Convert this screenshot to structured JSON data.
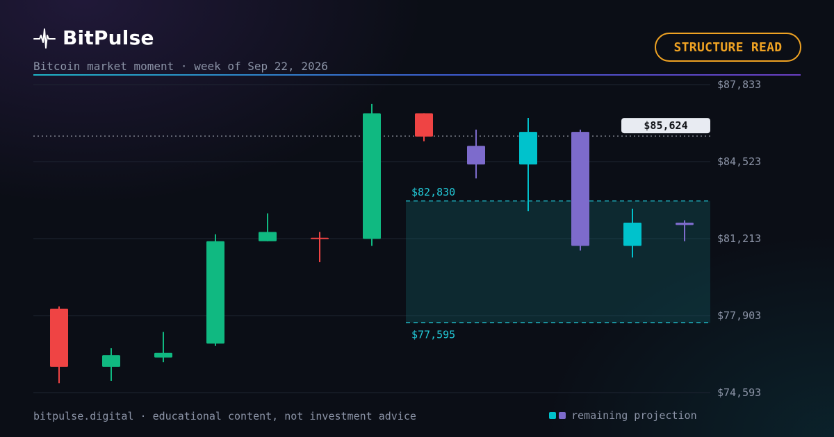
{
  "brand": {
    "name": "BitPulse",
    "icon": "pulse-icon"
  },
  "subtitle": "Bitcoin market moment · week of Sep 22, 2026",
  "badge": "STRUCTURE READ",
  "footer": "bitpulse.digital · educational content, not investment advice",
  "legend": {
    "label": "remaining projection",
    "colors": [
      "#00c2cc",
      "#7d6bcc"
    ]
  },
  "colors": {
    "up": "#10b981",
    "down": "#ef4444",
    "projection_up": "#00c2cc",
    "projection_down": "#7d6bcc",
    "zone_line": "#22c8d6",
    "accent": "#f0a323"
  },
  "chart_data": {
    "type": "candlestick",
    "y_ticks": [
      "$87,833",
      "$84,523",
      "$81,213",
      "$77,903",
      "$74,593"
    ],
    "y_tick_values": [
      87833,
      84523,
      81213,
      77903,
      74593
    ],
    "ylim": [
      74593,
      87833
    ],
    "grid": true,
    "current_price": {
      "label": "$85,624",
      "value": 85624
    },
    "zone": {
      "upper": {
        "label": "$82,830",
        "value": 82830
      },
      "lower": {
        "label": "$77,595",
        "value": 77595
      }
    },
    "candles": [
      {
        "open": 78200,
        "high": 78300,
        "low": 75000,
        "close": 75700,
        "kind": "actual"
      },
      {
        "open": 75700,
        "high": 76500,
        "low": 75100,
        "close": 76200,
        "kind": "actual"
      },
      {
        "open": 76100,
        "high": 77200,
        "low": 75900,
        "close": 76300,
        "kind": "actual"
      },
      {
        "open": 76700,
        "high": 81400,
        "low": 76600,
        "close": 81100,
        "kind": "actual"
      },
      {
        "open": 81100,
        "high": 82300,
        "low": 81100,
        "close": 81500,
        "kind": "actual"
      },
      {
        "open": 81250,
        "high": 81500,
        "low": 80200,
        "close": 81200,
        "kind": "actual"
      },
      {
        "open": 81200,
        "high": 87000,
        "low": 80900,
        "close": 86600,
        "kind": "actual"
      },
      {
        "open": 86600,
        "high": 86600,
        "low": 85400,
        "close": 85600,
        "kind": "actual"
      },
      {
        "open": 85200,
        "high": 85900,
        "low": 83800,
        "close": 84400,
        "kind": "projection"
      },
      {
        "open": 84400,
        "high": 86400,
        "low": 82400,
        "close": 85800,
        "kind": "projection"
      },
      {
        "open": 85800,
        "high": 85900,
        "low": 80700,
        "close": 80900,
        "kind": "projection"
      },
      {
        "open": 80900,
        "high": 82500,
        "low": 80400,
        "close": 81900,
        "kind": "projection"
      },
      {
        "open": 81900,
        "high": 82000,
        "low": 81100,
        "close": 81800,
        "kind": "projection"
      }
    ]
  }
}
